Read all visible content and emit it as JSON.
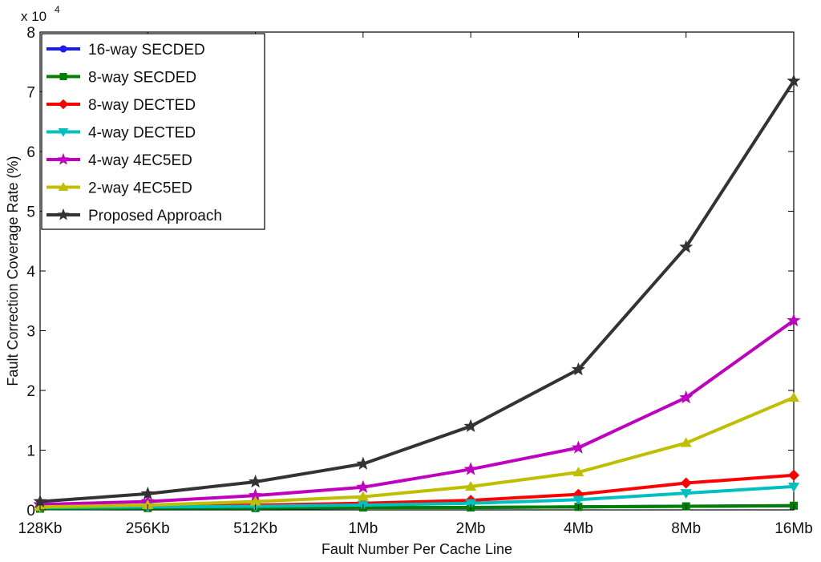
{
  "chart_data": {
    "type": "line",
    "title": "",
    "xlabel": "Fault Number Per Cache Line",
    "ylabel": "Fault Correction Coverage Rate (%)",
    "y_scale_label": "x 10",
    "y_scale_exponent": "4",
    "categories": [
      "128Kb",
      "256Kb",
      "512Kb",
      "1Mb",
      "2Mb",
      "4Mb",
      "8Mb",
      "16Mb"
    ],
    "ylim": [
      0,
      8
    ],
    "yticks": [
      "0",
      "1",
      "2",
      "3",
      "4",
      "5",
      "6",
      "7",
      "8"
    ],
    "grid": false,
    "legend_position": "top-left",
    "series": [
      {
        "name": "16-way SECDED",
        "color": "#1a1aff",
        "marker": "circle",
        "values": [
          0.02,
          0.03,
          0.03,
          0.04,
          0.04,
          0.05,
          0.06,
          0.07
        ]
      },
      {
        "name": "8-way SECDED",
        "color": "#008000",
        "marker": "square",
        "values": [
          0.02,
          0.03,
          0.03,
          0.04,
          0.04,
          0.05,
          0.06,
          0.07
        ]
      },
      {
        "name": "8-way DECTED",
        "color": "#ff0000",
        "marker": "diamond",
        "values": [
          0.05,
          0.06,
          0.08,
          0.11,
          0.16,
          0.26,
          0.45,
          0.58
        ]
      },
      {
        "name": "4-way DECTED",
        "color": "#00bfbf",
        "marker": "triangle-down",
        "values": [
          0.04,
          0.05,
          0.06,
          0.08,
          0.11,
          0.17,
          0.28,
          0.39
        ]
      },
      {
        "name": "4-way 4EC5ED",
        "color": "#c000c0",
        "marker": "star",
        "values": [
          0.09,
          0.14,
          0.24,
          0.38,
          0.68,
          1.04,
          1.88,
          3.17
        ]
      },
      {
        "name": "2-way 4EC5ED",
        "color": "#bfbf00",
        "marker": "triangle-up",
        "values": [
          0.05,
          0.08,
          0.14,
          0.22,
          0.39,
          0.63,
          1.12,
          1.88
        ]
      },
      {
        "name": "Proposed Approach",
        "color": "#333333",
        "marker": "star",
        "values": [
          0.14,
          0.27,
          0.47,
          0.77,
          1.4,
          2.35,
          4.4,
          7.18
        ]
      }
    ]
  }
}
